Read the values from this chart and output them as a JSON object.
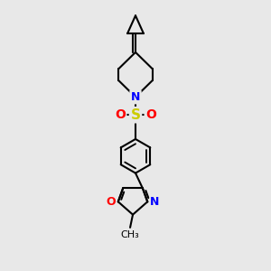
{
  "bg_color": "#e8e8e8",
  "bond_color": "#000000",
  "bond_width": 1.5,
  "N_color": "#0000ff",
  "O_color": "#ff0000",
  "S_color": "#cccc00",
  "figsize": [
    3.0,
    3.0
  ],
  "dpi": 100,
  "xlim": [
    0,
    10
  ],
  "ylim": [
    0,
    15
  ]
}
